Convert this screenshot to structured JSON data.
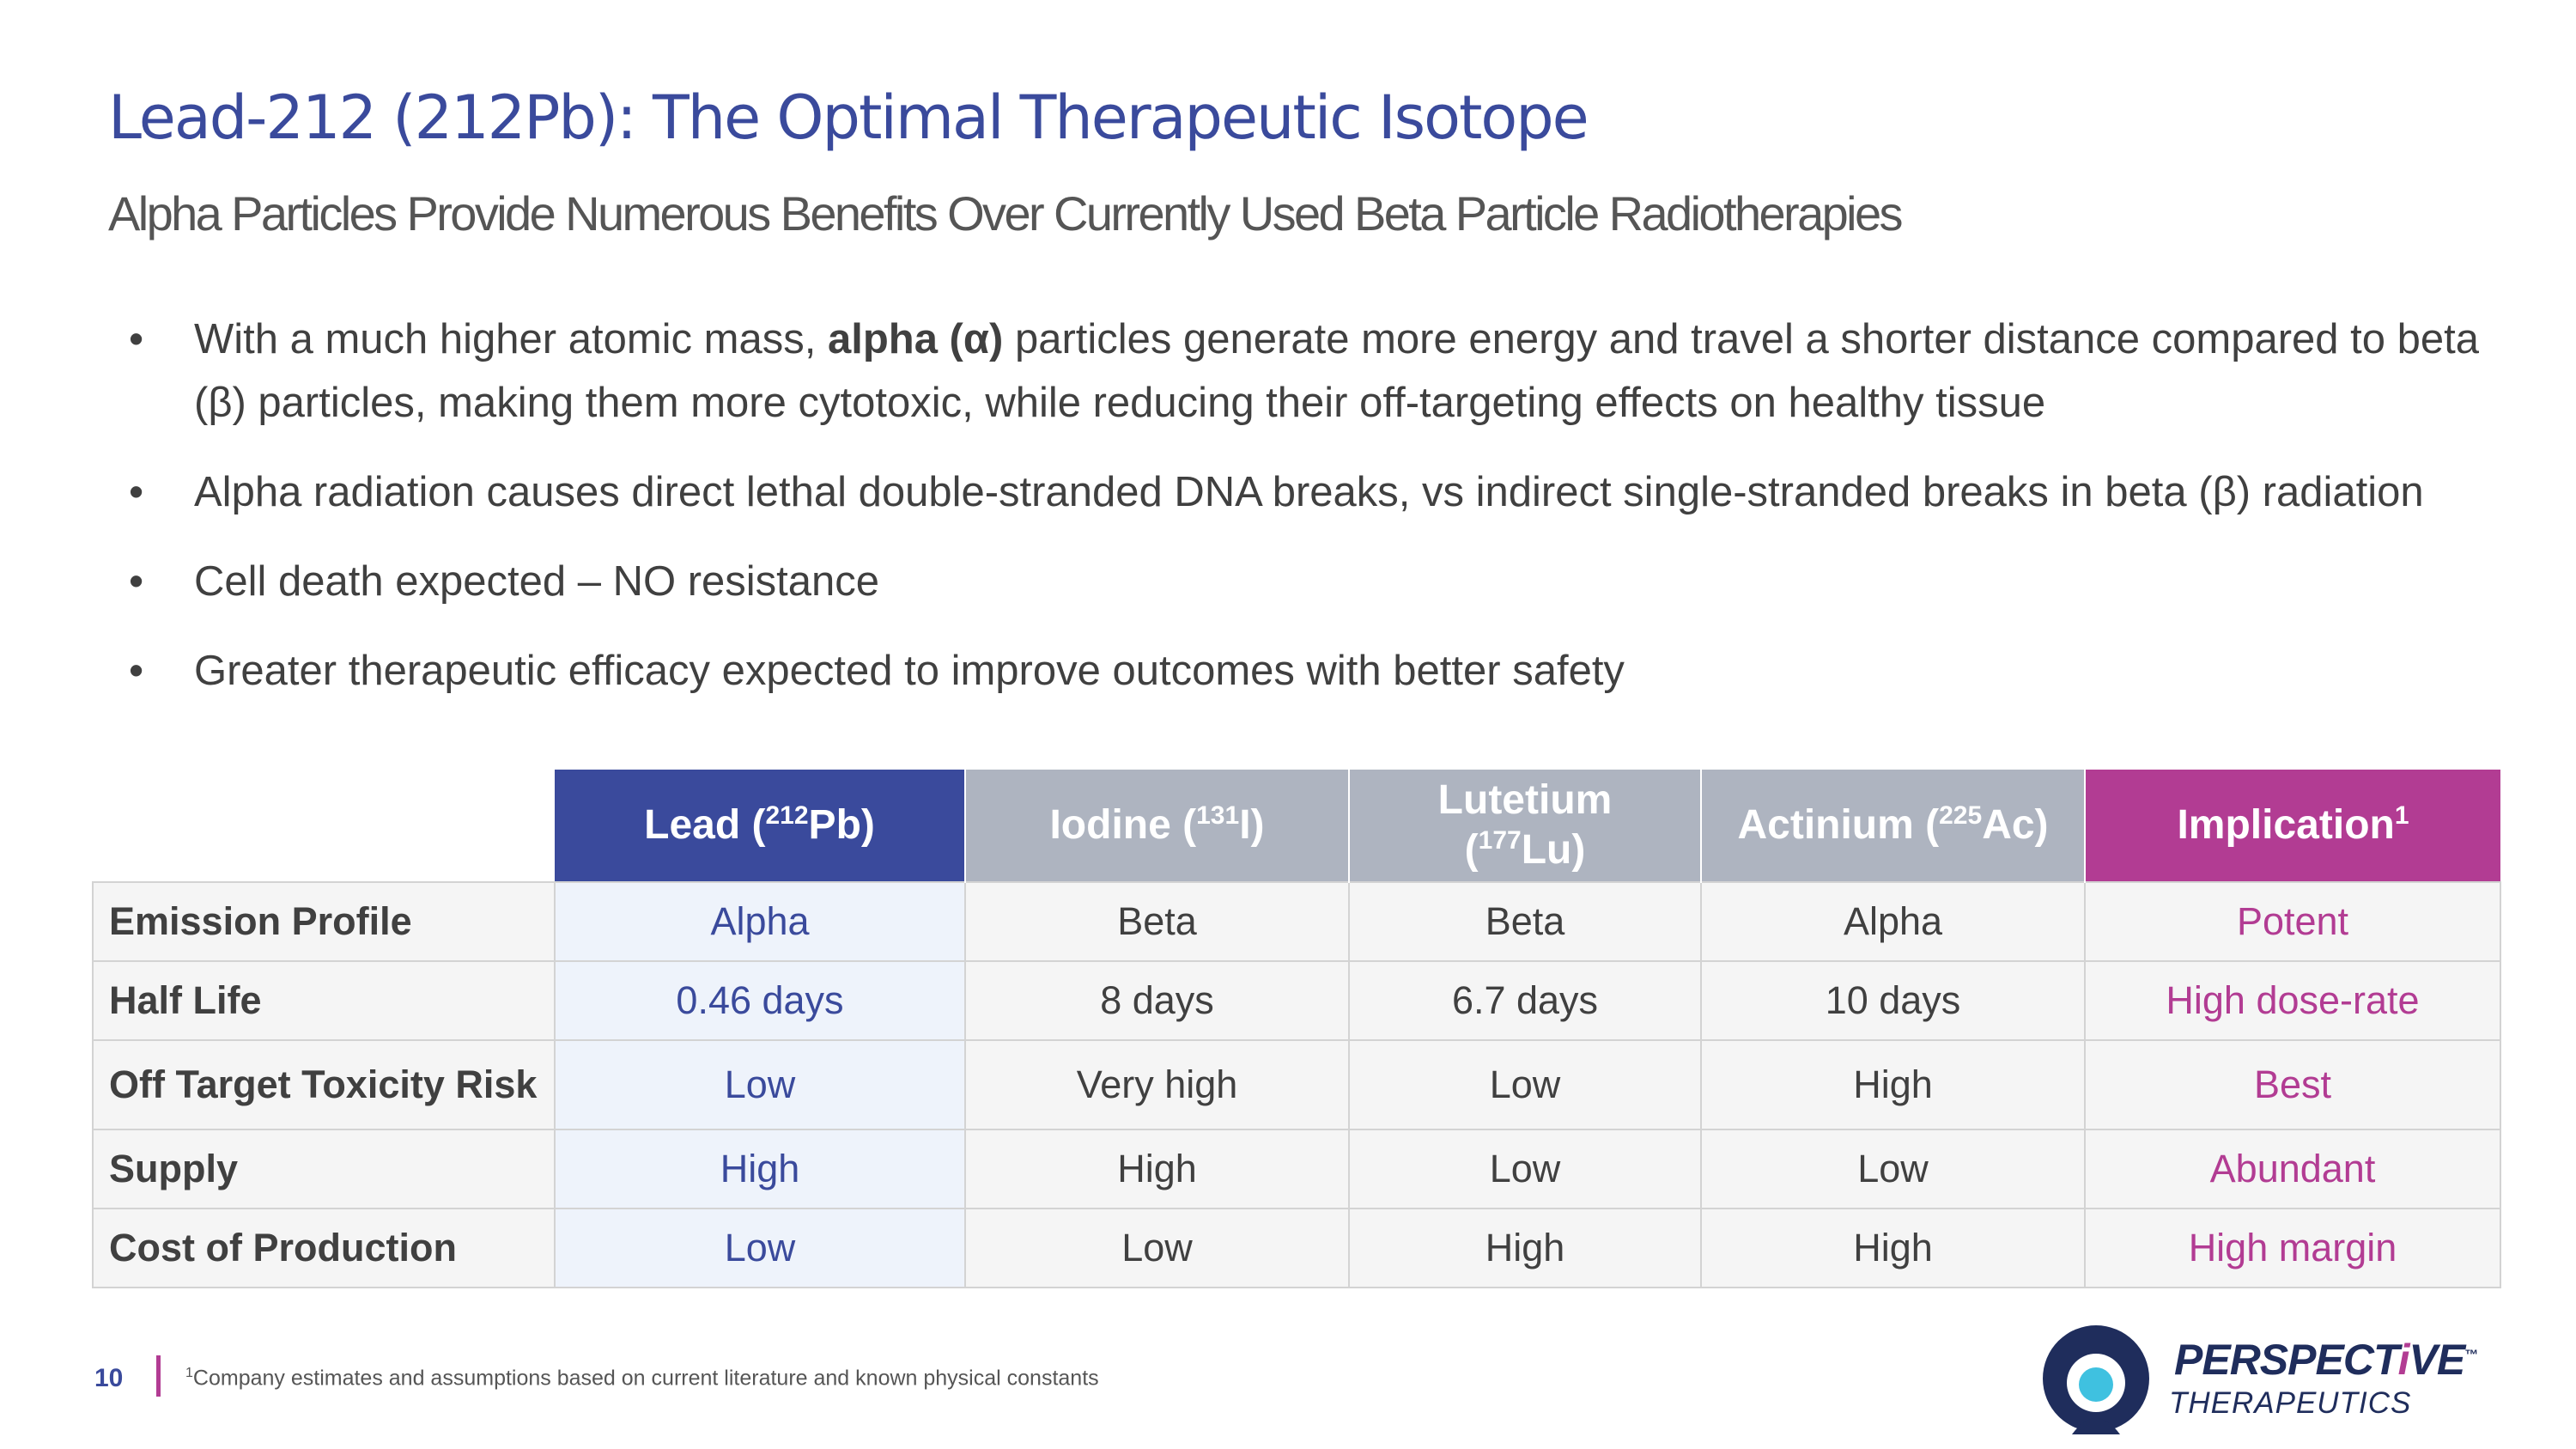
{
  "title": "Lead-212 (212Pb): The Optimal Therapeutic Isotope",
  "subtitle": "Alpha Particles Provide Numerous Benefits Over Currently Used Beta Particle Radiotherapies",
  "bullet_marker": "•",
  "bullets": [
    {
      "pre": "With a much higher atomic mass, ",
      "bold": "alpha (α)",
      "post": " particles generate more energy and travel a shorter distance compared to beta (β) particles, making them more cytotoxic, while reducing their off-targeting effects on healthy tissue"
    },
    {
      "text": "Alpha radiation causes direct lethal double-stranded DNA breaks, vs indirect single-stranded breaks in beta (β) radiation"
    },
    {
      "text": "Cell death expected – NO resistance"
    },
    {
      "text": "Greater therapeutic efficacy expected to improve outcomes with better safety"
    }
  ],
  "table": {
    "headers": [
      {
        "pre": "Lead (",
        "sup": "212",
        "post": "Pb)"
      },
      {
        "pre": "Iodine (",
        "sup": "131",
        "post": "I)"
      },
      {
        "pre_line1": "Lutetium",
        "pre": "(",
        "sup": "177",
        "post": "Lu)"
      },
      {
        "pre": "Actinium (",
        "sup": "225",
        "post": "Ac)"
      },
      {
        "pre": "Implication",
        "sup": "1",
        "post": ""
      }
    ],
    "rows": [
      {
        "label": "Emission Profile",
        "cells": [
          "Alpha",
          "Beta",
          "Beta",
          "Alpha",
          "Potent"
        ]
      },
      {
        "label": "Half Life",
        "cells": [
          "0.46 days",
          "8 days",
          "6.7 days",
          "10 days",
          "High dose-rate"
        ]
      },
      {
        "label": "Off Target Toxicity Risk",
        "cells": [
          "Low",
          "Very high",
          "Low",
          "High",
          "Best"
        ]
      },
      {
        "label": "Supply",
        "cells": [
          "High",
          "High",
          "Low",
          "Low",
          "Abundant"
        ]
      },
      {
        "label": "Cost of Production",
        "cells": [
          "Low",
          "Low",
          "High",
          "High",
          "High margin"
        ]
      }
    ]
  },
  "footer": {
    "page_number": "10",
    "footnote_marker": "1",
    "footnote_text": "Company estimates and assumptions based on current literature and known physical constants"
  },
  "logo": {
    "name_part1": "PERSPECT",
    "name_hi": "i",
    "name_part2": "VE",
    "tm": "™",
    "sub": "THERAPEUTICS"
  },
  "colors": {
    "title_blue": "#3a4a9c",
    "lead_header": "#3a4a9c",
    "grey_header": "#aeb4c0",
    "implication_magenta": "#b23c93",
    "lead_cell_bg": "#eef3fb",
    "cell_bg": "#f5f5f5",
    "logo_navy": "#1f2d5c",
    "logo_cyan": "#3fc1e0"
  }
}
